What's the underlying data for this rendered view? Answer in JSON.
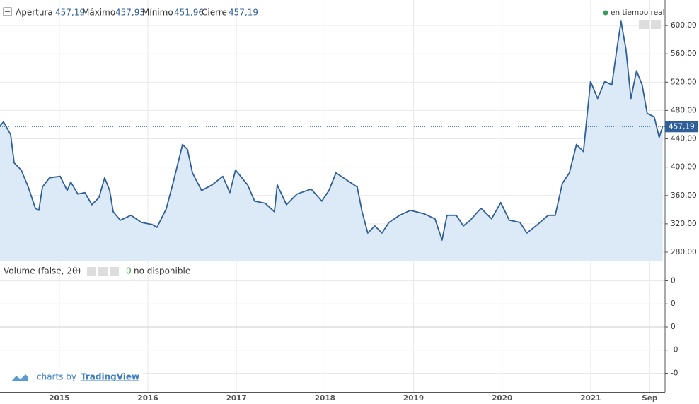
{
  "header": {
    "items": [
      {
        "label": "Apertura",
        "value": "457,19"
      },
      {
        "label": "Máximo",
        "value": "457,93"
      },
      {
        "label": "Mínimo",
        "value": "451,96"
      },
      {
        "label": "Cierre",
        "value": "457,19"
      }
    ],
    "status": "en tiempo real"
  },
  "chart_data": [
    {
      "type": "line",
      "color": "#2e5f99",
      "fill": "#dceaf7",
      "grid": true,
      "x": [
        2014.33,
        2014.37,
        2014.45,
        2014.49,
        2014.57,
        2014.649,
        2014.729,
        2014.769,
        2014.809,
        2014.889,
        2015.009,
        2015.089,
        2015.129,
        2015.209,
        2015.288,
        2015.368,
        2015.448,
        2015.512,
        2015.568,
        2015.608,
        2015.688,
        2015.808,
        2015.927,
        2016.047,
        2016.103,
        2016.207,
        2016.287,
        2016.391,
        2016.447,
        2016.503,
        2016.606,
        2016.726,
        2016.846,
        2016.926,
        2016.99,
        2017.126,
        2017.205,
        2017.325,
        2017.429,
        2017.461,
        2017.565,
        2017.685,
        2017.844,
        2017.964,
        2018.044,
        2018.124,
        2018.244,
        2018.364,
        2018.419,
        2018.483,
        2018.563,
        2018.643,
        2018.723,
        2018.843,
        2018.963,
        2019.122,
        2019.242,
        2019.322,
        2019.378,
        2019.482,
        2019.562,
        2019.641,
        2019.761,
        2019.881,
        2019.985,
        2020.081,
        2020.201,
        2020.28,
        2020.4,
        2020.52,
        2020.6,
        2020.68,
        2020.76,
        2020.84,
        2020.919,
        2020.999,
        2021.079,
        2021.159,
        2021.239,
        2021.295,
        2021.343,
        2021.399,
        2021.455,
        2021.518,
        2021.582,
        2021.638,
        2021.718,
        2021.774,
        2021.814
      ],
      "values": [
        458,
        464,
        446,
        406,
        396,
        372,
        342,
        339,
        372,
        385,
        387,
        367,
        379,
        362,
        364,
        347,
        357,
        385,
        367,
        337,
        325,
        332,
        322,
        319,
        315,
        341,
        379,
        432,
        425,
        392,
        367,
        375,
        387,
        364,
        396,
        375,
        352,
        349,
        337,
        375,
        347,
        362,
        369,
        352,
        367,
        392,
        382,
        372,
        337,
        307,
        317,
        307,
        322,
        332,
        339,
        334,
        327,
        297,
        332,
        332,
        317,
        325,
        342,
        327,
        350,
        325,
        322,
        307,
        319,
        332,
        332,
        377,
        392,
        432,
        422,
        521,
        497,
        521,
        516,
        566,
        606,
        566,
        497,
        536,
        516,
        476,
        471,
        442,
        458
      ],
      "xlim": [
        2014.33,
        2021.84
      ],
      "xticks": [
        2015,
        2016,
        2017,
        2018,
        2019,
        2020,
        2021,
        {
          "value": 2021.667,
          "label": "Sep"
        }
      ],
      "ylim": [
        268,
        636
      ],
      "yticks": [
        {
          "value": 280,
          "label": "280,00"
        },
        {
          "value": 320,
          "label": "320,00"
        },
        {
          "value": 360,
          "label": "360,00"
        },
        {
          "value": 400,
          "label": "400,00"
        },
        {
          "value": 440,
          "label": "440,00"
        },
        {
          "value": 480,
          "label": "480,00"
        },
        {
          "value": 520,
          "label": "520,00"
        },
        {
          "value": 560,
          "label": "560,00"
        },
        {
          "value": 600,
          "label": "600,00"
        }
      ],
      "last_value": {
        "value": 457.19,
        "label": "457,19"
      }
    },
    {
      "type": "volume",
      "title": "Volume (false, 20)",
      "value": 0,
      "note": "no disponible",
      "ylim": [
        -0.281,
        0.284
      ],
      "yticks": [
        {
          "value": 0.2,
          "label": "0"
        },
        {
          "value": 0.1,
          "label": "0"
        },
        {
          "value": 0,
          "label": "0"
        },
        {
          "value": -0.1,
          "label": "-0"
        },
        {
          "value": -0.2,
          "label": "-0"
        }
      ]
    }
  ],
  "footer": {
    "prefix": "charts by",
    "brand": "TradingView"
  }
}
